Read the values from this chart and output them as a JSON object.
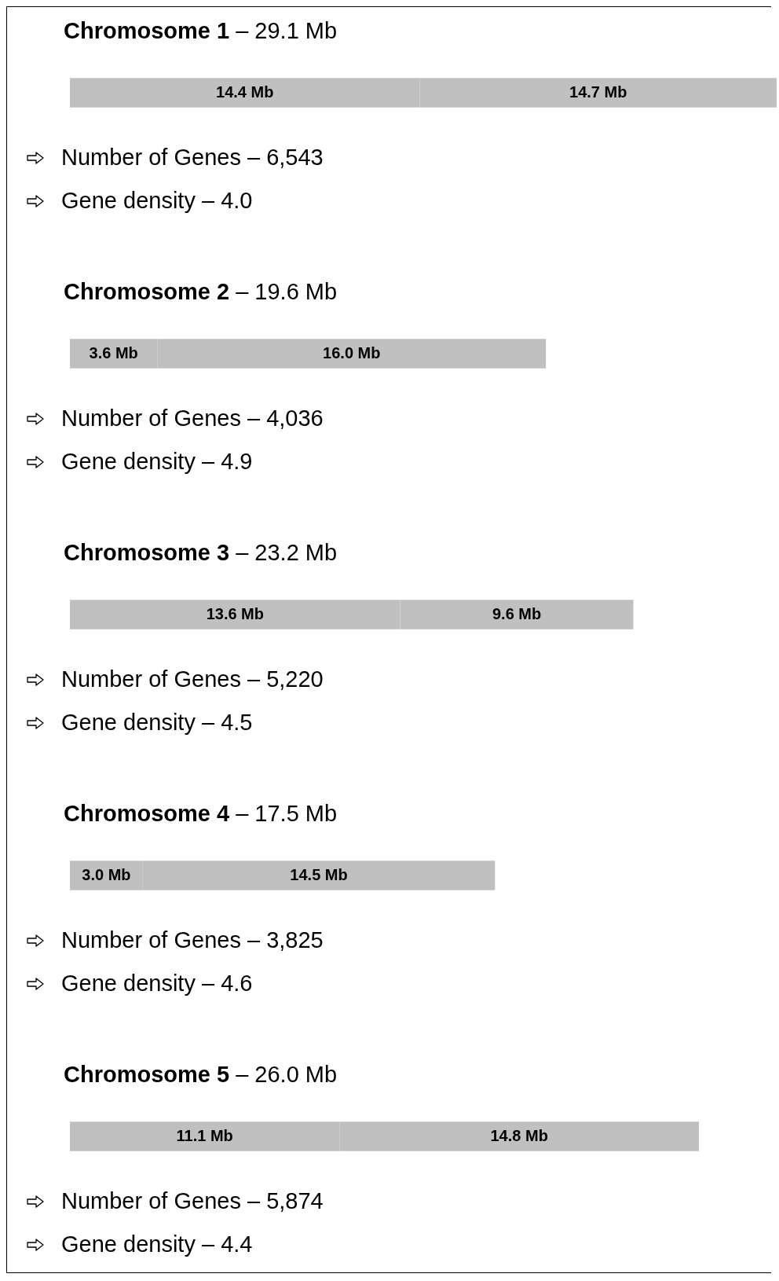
{
  "chart_data": [
    {
      "type": "bar",
      "orientation": "horizontal",
      "stacked": true,
      "title": "Chromosome 1 – 29.1 Mb",
      "categories": [
        null
      ],
      "series": [
        {
          "color": "#c0c0c0",
          "values": [
            14.4
          ],
          "value_labels": [
            "14.4 Mb"
          ]
        },
        {
          "color": "#c0c0c0",
          "values": [
            14.7
          ],
          "value_labels": [
            "14.7 Mb"
          ]
        }
      ],
      "annotations": [
        "Number of Genes – 6,543",
        "Gene density – 4.0"
      ]
    },
    {
      "type": "bar",
      "orientation": "horizontal",
      "stacked": true,
      "title": "Chromosome 2 – 19.6 Mb",
      "categories": [
        null
      ],
      "series": [
        {
          "color": "#c0c0c0",
          "values": [
            3.6
          ],
          "value_labels": [
            "3.6 Mb"
          ]
        },
        {
          "color": "#c0c0c0",
          "values": [
            16.0
          ],
          "value_labels": [
            "16.0 Mb"
          ]
        }
      ],
      "annotations": [
        "Number of Genes – 4,036",
        "Gene density – 4.9"
      ]
    },
    {
      "type": "bar",
      "orientation": "horizontal",
      "stacked": true,
      "title": "Chromosome 3 – 23.2 Mb",
      "categories": [
        null
      ],
      "series": [
        {
          "color": "#c0c0c0",
          "values": [
            13.6
          ],
          "value_labels": [
            "13.6 Mb"
          ]
        },
        {
          "color": "#c0c0c0",
          "values": [
            9.6
          ],
          "value_labels": [
            "9.6 Mb"
          ]
        }
      ],
      "annotations": [
        "Number of Genes – 5,220",
        "Gene density – 4.5"
      ]
    },
    {
      "type": "bar",
      "orientation": "horizontal",
      "stacked": true,
      "title": "Chromosome 4 – 17.5 Mb",
      "categories": [
        null
      ],
      "series": [
        {
          "color": "#c0c0c0",
          "values": [
            3.0
          ],
          "value_labels": [
            "3.0 Mb"
          ]
        },
        {
          "color": "#c0c0c0",
          "values": [
            14.5
          ],
          "value_labels": [
            "14.5 Mb"
          ]
        }
      ],
      "annotations": [
        "Number of Genes – 3,825",
        "Gene density – 4.6"
      ]
    },
    {
      "type": "bar",
      "orientation": "horizontal",
      "stacked": true,
      "title": "Chromosome 5 – 26.0 Mb",
      "categories": [
        null
      ],
      "series": [
        {
          "color": "#c0c0c0",
          "values": [
            11.1
          ],
          "value_labels": [
            "11.1 Mb"
          ]
        },
        {
          "color": "#c0c0c0",
          "values": [
            14.8
          ],
          "value_labels": [
            "14.8 Mb"
          ]
        }
      ],
      "annotations": [
        "Number of Genes – 5,874",
        "Gene density – 4.4"
      ]
    }
  ]
}
